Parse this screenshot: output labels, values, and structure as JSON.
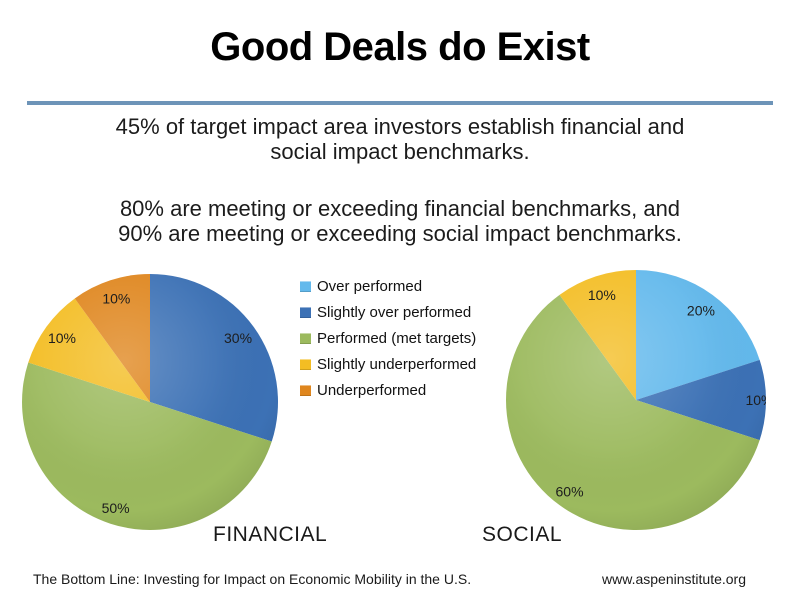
{
  "slide": {
    "title": "Good Deals do Exist",
    "divider_color": "#6D94B8",
    "paragraph1_lines": [
      "45% of target impact area investors establish financial and",
      "social impact benchmarks."
    ],
    "paragraph2_lines": [
      "80% are meeting or exceeding financial benchmarks, and",
      "90% are meeting or exceeding social impact benchmarks."
    ],
    "footer": {
      "left": "The Bottom Line: Investing for Impact on Economic Mobility in the U.S.",
      "right": "www.aspeninstitute.org"
    }
  },
  "palette": {
    "over_performed": "#63B9EC",
    "slightly_over_performed": "#3C71B5",
    "performed_met_targets": "#9CBA5E",
    "slightly_underperformed": "#F3BD23",
    "underperformed": "#DF861E"
  },
  "legend": {
    "position": "center, between the two pies",
    "items": [
      {
        "label": "Over performed",
        "color": "#63B9EC"
      },
      {
        "label": "Slightly over performed",
        "color": "#3C71B5"
      },
      {
        "label": "Performed (met targets)",
        "color": "#9CBA5E"
      },
      {
        "label": "Slightly underperformed",
        "color": "#F3BD23"
      },
      {
        "label": "Underperformed",
        "color": "#DF861E"
      }
    ]
  },
  "chart_data": [
    {
      "type": "pie",
      "title": "FINANCIAL",
      "start_angle_deg": 0,
      "direction": "clockwise",
      "data_labels": "percent, inside slices",
      "slices": [
        {
          "category": "Over performed",
          "value": 0,
          "label": "",
          "color": "#63B9EC"
        },
        {
          "category": "Slightly over performed",
          "value": 30,
          "label": "30%",
          "color": "#3C71B5"
        },
        {
          "category": "Performed (met targets)",
          "value": 50,
          "label": "50%",
          "color": "#9CBA5E",
          "label_frac": 0.87
        },
        {
          "category": "Slightly underperformed",
          "value": 10,
          "label": "10%",
          "color": "#F3BD23"
        },
        {
          "category": "Underperformed",
          "value": 10,
          "label": "10%",
          "color": "#DF861E"
        }
      ]
    },
    {
      "type": "pie",
      "title": "SOCIAL",
      "start_angle_deg": 0,
      "direction": "clockwise",
      "data_labels": "percent, inside slices",
      "slices": [
        {
          "category": "Over performed",
          "value": 20,
          "label": "20%",
          "color": "#63B9EC"
        },
        {
          "category": "Slightly over performed",
          "value": 10,
          "label": "10%",
          "color": "#3C71B5",
          "label_frac": 0.95
        },
        {
          "category": "Performed (met targets)",
          "value": 60,
          "label": "60%",
          "color": "#9CBA5E",
          "label_frac": 0.87
        },
        {
          "category": "Slightly underperformed",
          "value": 10,
          "label": "10%",
          "color": "#F3BD23"
        },
        {
          "category": "Underperformed",
          "value": 0,
          "label": "",
          "color": "#DF861E"
        }
      ]
    }
  ]
}
